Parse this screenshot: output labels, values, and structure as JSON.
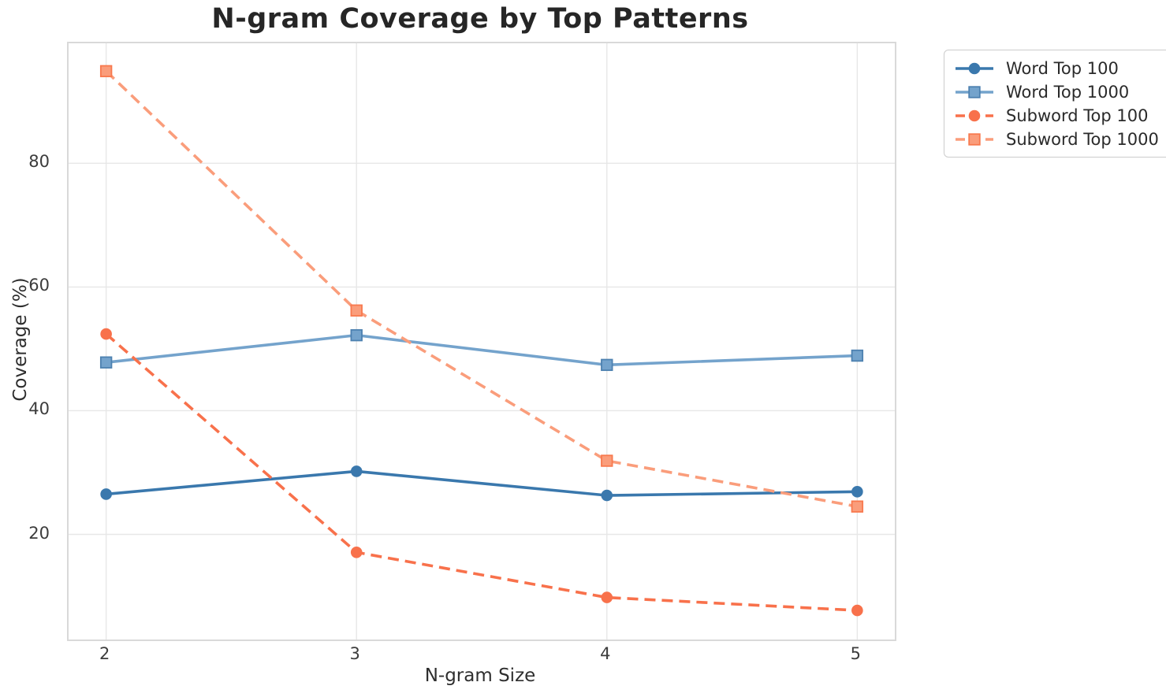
{
  "chart_data": {
    "type": "line",
    "title": "N-gram Coverage by Top Patterns",
    "xlabel": "N-gram Size",
    "ylabel": "Coverage (%)",
    "x": [
      2,
      3,
      4,
      5
    ],
    "xticks": [
      "2",
      "3",
      "4",
      "5"
    ],
    "yticks": [
      20,
      40,
      60,
      80
    ],
    "xlim": [
      1.85,
      5.15
    ],
    "ylim": [
      3,
      99.4
    ],
    "grid": true,
    "grid_color": "#e7e7e7",
    "spine_color": "#d9d9d9",
    "legend_position": "outside upper right",
    "series": [
      {
        "name": "Word Top 100",
        "values": [
          26.5,
          30.2,
          26.3,
          26.9
        ],
        "color": "#3a78ad",
        "edge_color": "#3a78ad",
        "marker": "circle",
        "line_style": "solid"
      },
      {
        "name": "Word Top 1000",
        "values": [
          47.8,
          52.2,
          47.4,
          48.9
        ],
        "color": "#74a3cc",
        "edge_color": "#4d81b0",
        "marker": "square",
        "line_style": "solid"
      },
      {
        "name": "Subword Top 100",
        "values": [
          52.4,
          17.1,
          9.8,
          7.7
        ],
        "color": "#f8714b",
        "edge_color": "#f8714b",
        "marker": "circle",
        "line_style": "dashed"
      },
      {
        "name": "Subword Top 1000",
        "values": [
          94.9,
          56.2,
          31.9,
          24.5
        ],
        "color": "#fa9d7b",
        "edge_color": "#f8794e",
        "marker": "square",
        "line_style": "dashed"
      }
    ]
  }
}
